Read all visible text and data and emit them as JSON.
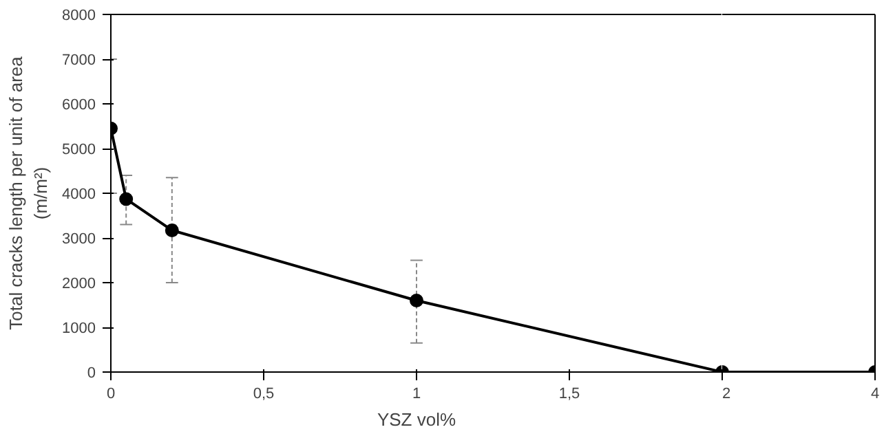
{
  "chart_data": [
    {
      "type": "line",
      "xlabel": "YSZ vol%",
      "ylabel": "Total cracks length per unit of area\n(m/m²)",
      "x": [
        0,
        0.05,
        0.2,
        1,
        2
      ],
      "values": [
        5450,
        3870,
        3170,
        1600,
        0
      ],
      "color": "#000000",
      "marker": "circle",
      "line_style": "solid",
      "errors": [
        [
          4000,
          7000
        ],
        [
          3300,
          4400
        ],
        [
          2000,
          4350
        ],
        [
          650,
          2500
        ],
        null
      ],
      "xlim": [
        0,
        2
      ],
      "xticks": [
        0,
        {
          "value": 0.5,
          "label": "0,5"
        },
        1,
        {
          "value": 1.5,
          "label": "1,5"
        },
        {
          "value": 2,
          "label": null
        }
      ],
      "ylim": [
        0,
        8000
      ],
      "yticks": [
        0,
        1000,
        2000,
        3000,
        4000,
        5000,
        6000,
        7000,
        8000
      ],
      "grid": false
    },
    {
      "type": "line",
      "x": [
        2,
        4
      ],
      "values": [
        0,
        0
      ],
      "color": "#000000",
      "marker": "circle",
      "line_style": "solid",
      "xlim": [
        2,
        4
      ],
      "xticks": [
        2,
        4
      ],
      "ylim": [
        0,
        8000
      ],
      "tick_labels": "x",
      "grid": false
    }
  ]
}
